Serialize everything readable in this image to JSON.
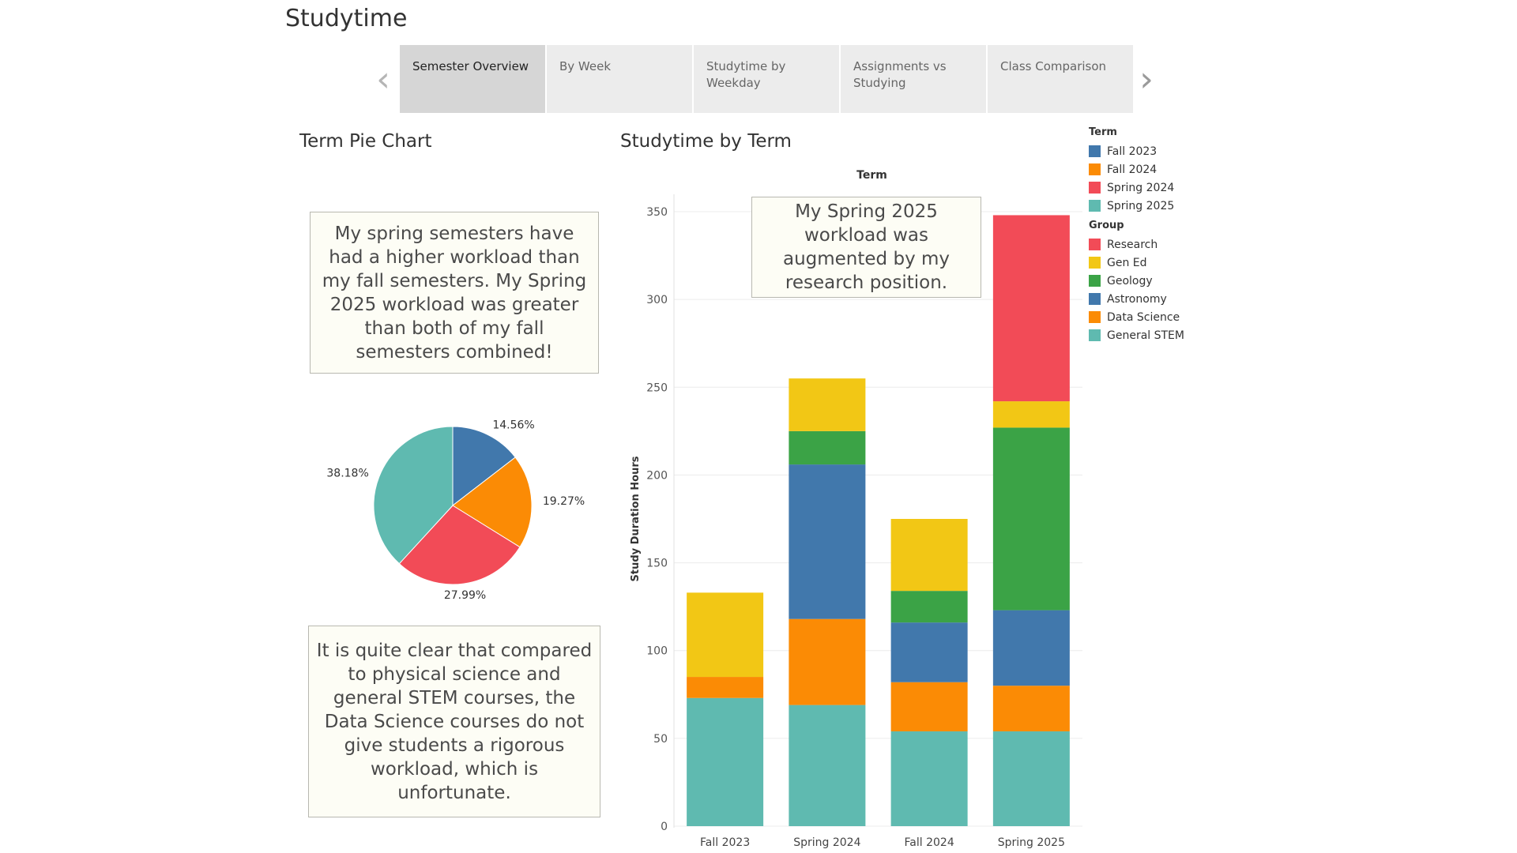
{
  "page": {
    "title": "Studytime"
  },
  "tabs": [
    {
      "label": "Semester Overview",
      "active": true
    },
    {
      "label": "By Week",
      "active": false
    },
    {
      "label": "Studytime by Weekday",
      "active": false
    },
    {
      "label": "Assignments vs Studying",
      "active": false
    },
    {
      "label": "Class Comparison",
      "active": false
    }
  ],
  "nav": {
    "prev_icon": "chevron-left-icon",
    "next_icon": "chevron-right-icon"
  },
  "pie_section": {
    "title": "Term Pie Chart"
  },
  "bar_section": {
    "title": "Studytime by Term"
  },
  "notes": {
    "top_left": "My spring semesters have had a higher workload than my fall semesters. My Spring 2025 workload was greater than both of my fall semesters combined!",
    "bottom_left": "It is quite clear that compared to physical science and general STEM courses, the Data Science courses do not give students a rigorous workload, which is unfortunate.",
    "chart_annotation": "My Spring 2025 workload was augmented by my research position."
  },
  "legend": {
    "term_title": "Term",
    "terms": [
      {
        "label": "Fall 2023",
        "color": "#4178ac"
      },
      {
        "label": "Fall 2024",
        "color": "#fb8b05"
      },
      {
        "label": "Spring 2024",
        "color": "#f24b57"
      },
      {
        "label": "Spring 2025",
        "color": "#5fbab0"
      }
    ],
    "group_title": "Group",
    "groups": [
      {
        "label": "Research",
        "color": "#f24b57"
      },
      {
        "label": "Gen Ed",
        "color": "#f2c715"
      },
      {
        "label": "Geology",
        "color": "#3ba346"
      },
      {
        "label": "Astronomy",
        "color": "#4178ac"
      },
      {
        "label": "Data Science",
        "color": "#fb8b05"
      },
      {
        "label": "General STEM",
        "color": "#5fbab0"
      }
    ]
  },
  "chart_data": [
    {
      "type": "pie",
      "title": "Term Pie Chart",
      "slices": [
        {
          "label": "Fall 2023",
          "value": 14.56,
          "display": "14.56%",
          "color": "#4178ac"
        },
        {
          "label": "Fall 2024",
          "value": 19.27,
          "display": "19.27%",
          "color": "#fb8b05"
        },
        {
          "label": "Spring 2024",
          "value": 27.99,
          "display": "27.99%",
          "color": "#f24b57"
        },
        {
          "label": "Spring 2025",
          "value": 38.18,
          "display": "38.18%",
          "color": "#5fbab0"
        }
      ]
    },
    {
      "type": "bar",
      "stacked": true,
      "title": "Studytime by Term",
      "xlabel": "Term",
      "ylabel": "Study Duration Hours",
      "ylim": [
        0,
        350
      ],
      "yticks": [
        0,
        50,
        100,
        150,
        200,
        250,
        300,
        350
      ],
      "categories": [
        "Fall 2023",
        "Spring 2024",
        "Fall 2024",
        "Spring 2025"
      ],
      "series": [
        {
          "name": "General STEM",
          "color": "#5fbab0",
          "values": [
            73,
            69,
            54,
            54
          ]
        },
        {
          "name": "Data Science",
          "color": "#fb8b05",
          "values": [
            12,
            49,
            28,
            26
          ]
        },
        {
          "name": "Astronomy",
          "color": "#4178ac",
          "values": [
            0,
            88,
            34,
            43
          ]
        },
        {
          "name": "Geology",
          "color": "#3ba346",
          "values": [
            0,
            19,
            18,
            104
          ]
        },
        {
          "name": "Gen Ed",
          "color": "#f2c715",
          "values": [
            48,
            30,
            41,
            15
          ]
        },
        {
          "name": "Research",
          "color": "#f24b57",
          "values": [
            0,
            0,
            0,
            106
          ]
        }
      ],
      "grid": true
    }
  ]
}
